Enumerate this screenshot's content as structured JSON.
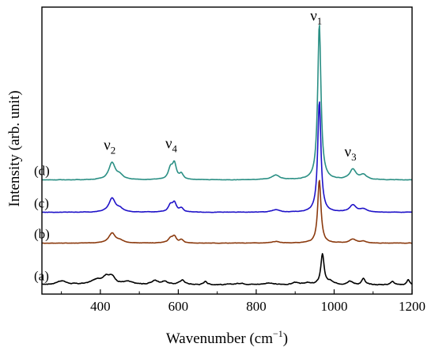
{
  "chart_data": {
    "type": "line",
    "xlabel": "Wavenumber (cm",
    "xlabel_sup": "−1",
    "xlabel_end": ")",
    "ylabel": "Intensity (arb. unit)",
    "xlim": [
      250,
      1200
    ],
    "xticks": [
      400,
      600,
      800,
      1000,
      1200
    ],
    "y_tick_labels": false,
    "grid": false,
    "legend": "none",
    "annotations": [
      {
        "text": "ν",
        "sub": "1",
        "x": 962
      },
      {
        "text": "ν",
        "sub": "2",
        "x": 432
      },
      {
        "text": "ν",
        "sub": "3",
        "x": 1050
      },
      {
        "text": "ν",
        "sub": "4",
        "x": 590
      }
    ],
    "series": [
      {
        "label": "(a)",
        "color": "#000000",
        "baseline": 0.0,
        "noise": 0.012,
        "peaks": [
          [
            300,
            0.05,
            15
          ],
          [
            390,
            0.055,
            18
          ],
          [
            415,
            0.09,
            12
          ],
          [
            430,
            0.08,
            10
          ],
          [
            470,
            0.035,
            15
          ],
          [
            540,
            0.05,
            10
          ],
          [
            565,
            0.04,
            10
          ],
          [
            610,
            0.06,
            8
          ],
          [
            670,
            0.045,
            5
          ],
          [
            760,
            0.02,
            15
          ],
          [
            830,
            0.02,
            15
          ],
          [
            900,
            0.03,
            8
          ],
          [
            930,
            0.025,
            8
          ],
          [
            970,
            0.4,
            5
          ],
          [
            990,
            0.04,
            8
          ],
          [
            1040,
            0.05,
            8
          ],
          [
            1075,
            0.08,
            5
          ],
          [
            1150,
            0.05,
            5
          ],
          [
            1190,
            0.07,
            4
          ]
        ]
      },
      {
        "label": "(b)",
        "color": "#8B3A0E",
        "baseline": 0.54,
        "noise": 0.006,
        "peaks": [
          [
            430,
            0.13,
            10
          ],
          [
            450,
            0.03,
            10
          ],
          [
            580,
            0.06,
            7
          ],
          [
            590,
            0.08,
            6
          ],
          [
            608,
            0.04,
            6
          ],
          [
            850,
            0.02,
            12
          ],
          [
            962,
            0.82,
            5
          ],
          [
            1048,
            0.05,
            10
          ],
          [
            1075,
            0.02,
            10
          ]
        ]
      },
      {
        "label": "(c)",
        "color": "#1F12C8",
        "baseline": 0.94,
        "noise": 0.006,
        "peaks": [
          [
            430,
            0.18,
            10
          ],
          [
            450,
            0.04,
            10
          ],
          [
            580,
            0.09,
            7
          ],
          [
            590,
            0.11,
            6
          ],
          [
            608,
            0.05,
            6
          ],
          [
            850,
            0.03,
            12
          ],
          [
            962,
            1.44,
            5
          ],
          [
            1048,
            0.09,
            10
          ],
          [
            1075,
            0.04,
            10
          ]
        ]
      },
      {
        "label": "(d)",
        "color": "#2A8F84",
        "baseline": 1.36,
        "noise": 0.006,
        "peaks": [
          [
            430,
            0.22,
            10
          ],
          [
            450,
            0.05,
            10
          ],
          [
            580,
            0.14,
            7
          ],
          [
            590,
            0.19,
            6
          ],
          [
            608,
            0.07,
            6
          ],
          [
            850,
            0.06,
            12
          ],
          [
            962,
            2.02,
            5
          ],
          [
            1048,
            0.13,
            10
          ],
          [
            1075,
            0.06,
            10
          ]
        ]
      }
    ],
    "ylim": [
      -0.12,
      3.6
    ]
  }
}
